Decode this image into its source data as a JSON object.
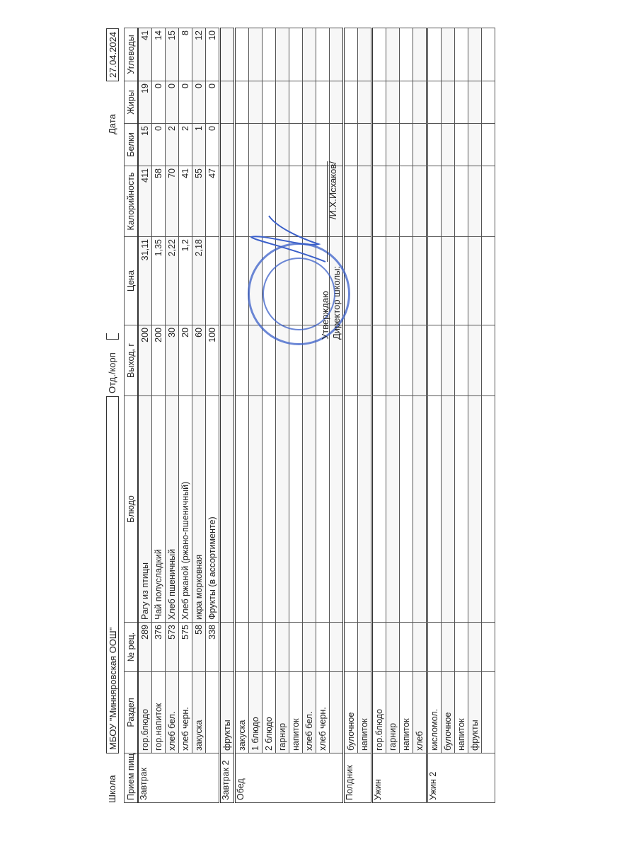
{
  "header": {
    "school_label": "Школа",
    "school": "МБОУ \"Минняровская ООШ\"",
    "dept_label": "Отд./корп",
    "date_label": "Дата",
    "date": "27.04.2024"
  },
  "approval": {
    "line1": "Утверждаю",
    "line2": "Директор школы:",
    "signer": "/И.Х.Исхаков/"
  },
  "columns": [
    "Прием пищи",
    "Раздел",
    "№ рец.",
    "Блюдо",
    "Выход, г",
    "Цена",
    "Калорийность",
    "Белки",
    "Жиры",
    "Углеводы"
  ],
  "meals": [
    {
      "name": "Завтрак",
      "rows": [
        [
          "гор.блюдо",
          "289",
          "Рагу из птицы",
          "200",
          "31,11",
          "411",
          "15",
          "19",
          "41"
        ],
        [
          "гор.напиток",
          "376",
          "Чай полусладкий",
          "200",
          "1,35",
          "58",
          "0",
          "0",
          "14"
        ],
        [
          "хлеб бел.",
          "573",
          "Хлеб пшеничный",
          "30",
          "2,22",
          "70",
          "2",
          "0",
          "15"
        ],
        [
          "хлеб черн.",
          "575",
          "Хлеб ржаной (ржано-пшеничный)",
          "20",
          "1,2",
          "41",
          "2",
          "0",
          "8"
        ],
        [
          "закуска",
          "58",
          "икра морковная",
          "60",
          "2,18",
          "55",
          "1",
          "0",
          "12"
        ],
        [
          "",
          "338",
          "Фрукты (в ассортименте)",
          "100",
          "",
          "47",
          "0",
          "0",
          "10"
        ]
      ]
    },
    {
      "name": "Завтрак 2",
      "rows": [
        [
          "фрукты",
          "",
          "",
          "",
          "",
          "",
          "",
          "",
          ""
        ]
      ]
    },
    {
      "name": "Обед",
      "rows": [
        [
          "закуска"
        ],
        [
          "1 блюдо"
        ],
        [
          "2 блюдо"
        ],
        [
          "гарнир"
        ],
        [
          "напиток"
        ],
        [
          "хлеб бел."
        ],
        [
          "хлеб черн."
        ],
        [
          ""
        ]
      ]
    },
    {
      "name": "Полдник",
      "rows": [
        [
          "булочное"
        ],
        [
          "напиток"
        ]
      ]
    },
    {
      "name": "Ужин",
      "rows": [
        [
          "гор.блюдо"
        ],
        [
          "гарнир"
        ],
        [
          "напиток"
        ],
        [
          "хлеб"
        ]
      ]
    },
    {
      "name": "Ужин 2",
      "rows": [
        [
          "кисломол."
        ],
        [
          "булочное"
        ],
        [
          "напиток"
        ],
        [
          "фрукты"
        ],
        [
          ""
        ]
      ]
    }
  ],
  "colors": {
    "stamp": "#3a5fc9"
  }
}
